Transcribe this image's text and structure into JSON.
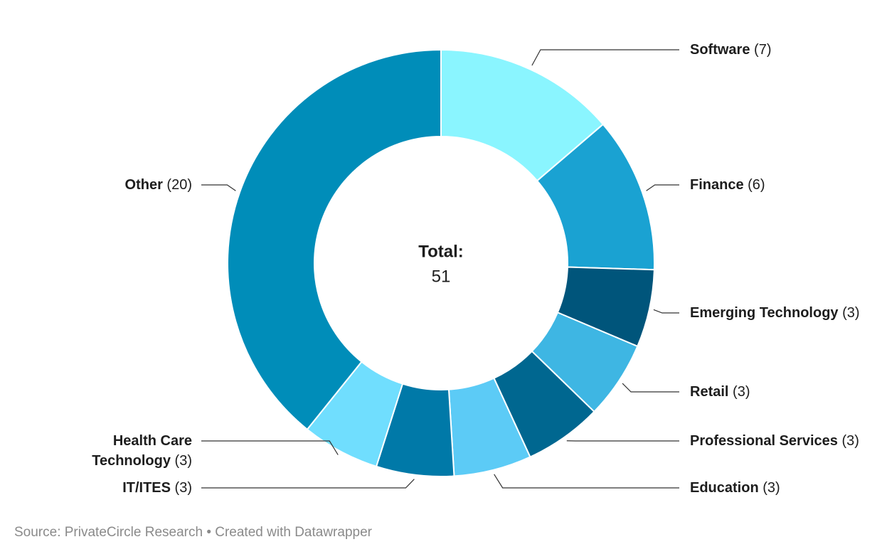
{
  "chart_data": {
    "type": "donut",
    "categories": [
      "Software",
      "Finance",
      "Emerging Technology",
      "Retail",
      "Professional Services",
      "Education",
      "IT/ITES",
      "Health Care Technology",
      "Other"
    ],
    "values": [
      7,
      6,
      3,
      3,
      3,
      3,
      3,
      3,
      20
    ],
    "value_labels": [
      "(7)",
      "(6)",
      "(3)",
      "(3)",
      "(3)",
      "(3)",
      "(3)",
      "(3)",
      "(20)"
    ],
    "colors": [
      "#8af5ff",
      "#1aa2d2",
      "#00557b",
      "#3eb6e3",
      "#006790",
      "#5ccbf6",
      "#0079a8",
      "#70defe",
      "#008db9"
    ],
    "center_title": "Total:",
    "total": 51,
    "source": "Source: PrivateCircle Research • Created with Datawrapper"
  }
}
